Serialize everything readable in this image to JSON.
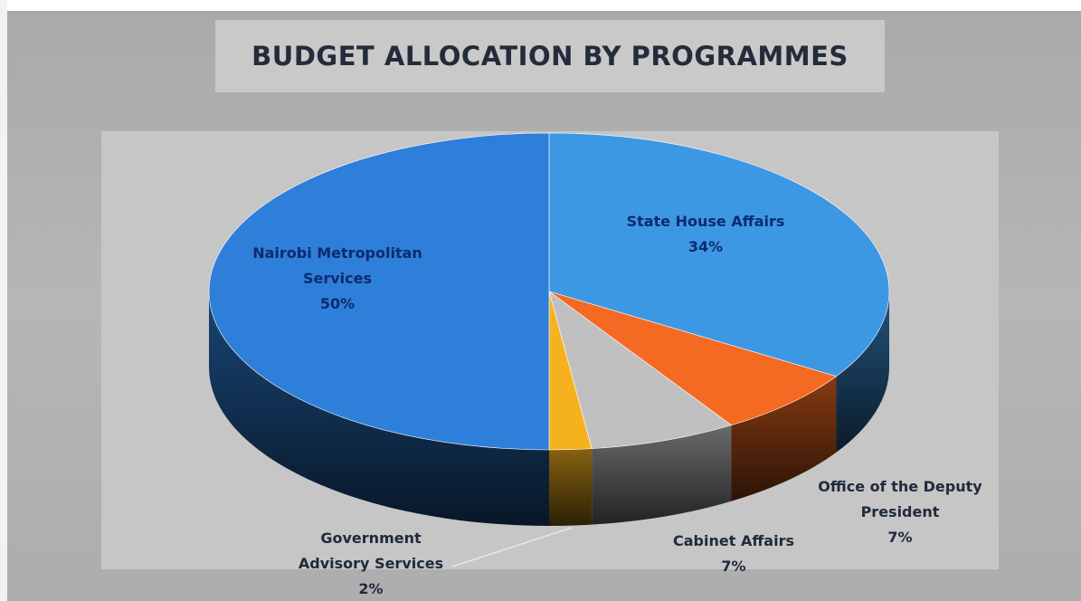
{
  "chart_data": {
    "type": "pie",
    "title": "BUDGET ALLOCATION BY PROGRAMMES",
    "slices": [
      {
        "name_lines": [
          "State House Affairs"
        ],
        "label": "34%",
        "value": 34,
        "color": "#3d98e4"
      },
      {
        "name_lines": [
          "Office of the Deputy",
          "President"
        ],
        "label": "7%",
        "value": 7,
        "color": "#f46a22"
      },
      {
        "name_lines": [
          "Cabinet Affairs"
        ],
        "label": "7%",
        "value": 7,
        "color": "#c0c0c0"
      },
      {
        "name_lines": [
          "Government",
          "Advisory Services"
        ],
        "label": "2%",
        "value": 2,
        "color": "#f5b21e"
      },
      {
        "name_lines": [
          "Nairobi Metropolitan",
          "Services"
        ],
        "label": "50%",
        "value": 50,
        "color": "#2e7fd9"
      }
    ]
  }
}
